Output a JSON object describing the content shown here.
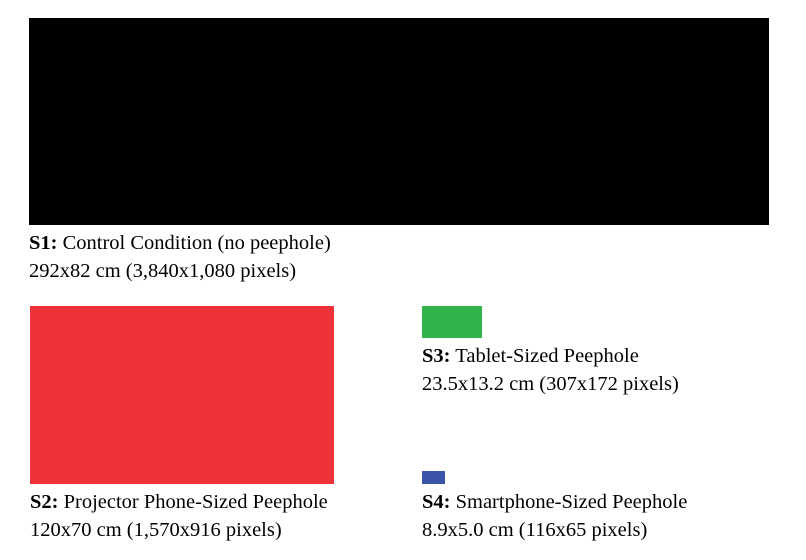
{
  "conditions": [
    {
      "id": "S1",
      "label": "S1:",
      "name": "Control Condition (no peephole)",
      "size": "292x82 cm (3,840x1,080 pixels)",
      "color": "#000000"
    },
    {
      "id": "S2",
      "label": "S2:",
      "name": "Projector Phone-Sized Peephole",
      "size": "120x70 cm (1,570x916 pixels)",
      "color": "#ee323a"
    },
    {
      "id": "S3",
      "label": "S3:",
      "name": "Tablet-Sized Peephole",
      "size": "23.5x13.2 cm (307x172 pixels)",
      "color": "#2fb34a"
    },
    {
      "id": "S4",
      "label": "S4:",
      "name": "Smartphone-Sized Peephole",
      "size": "8.9x5.0 cm (116x65 pixels)",
      "color": "#3a55a8"
    }
  ]
}
